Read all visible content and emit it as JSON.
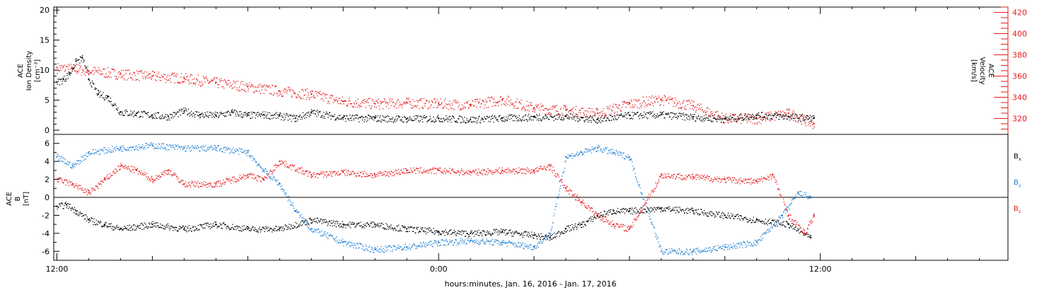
{
  "chart_data": [
    {
      "type": "scatter",
      "panel": "top",
      "xlabel": "hours:minutes, Jan. 16, 2016 - Jan. 17, 2016",
      "x_tick_labels": [
        "12:00",
        "0:00",
        "12:00"
      ],
      "x_unit": "hours since Jan. 16, 2016 00:00",
      "x_ticks": [
        12,
        24,
        36
      ],
      "xlim": [
        11.9,
        41.9
      ],
      "left_axis": {
        "label_lines": [
          "ACE",
          "Ion Density",
          "[cm⁻³]"
        ],
        "ylim": [
          -0.7,
          20.5
        ],
        "tick_labels": [
          "0",
          "5",
          "10",
          "15",
          "20"
        ],
        "color": "#000000"
      },
      "right_axis": {
        "label_lines": [
          "ACE",
          "Velocity",
          "[km/s]"
        ],
        "ylim": [
          305,
          425
        ],
        "tick_labels": [
          "320",
          "340",
          "360",
          "380",
          "400",
          "420"
        ],
        "color": "#e8191c"
      },
      "series": [
        {
          "name": "Ion Density",
          "axis": "left",
          "color": "#000000",
          "x": [
            12.0,
            12.2,
            12.4,
            12.6,
            12.8,
            13.0,
            13.3,
            13.6,
            14.0,
            14.5,
            15.0,
            15.5,
            16.0,
            16.5,
            17.0,
            17.5,
            18.0,
            18.5,
            19.0,
            19.5,
            20.0,
            21.0,
            22.0,
            23.0,
            24.0,
            25.0,
            26.0,
            27.0,
            28.0,
            29.0,
            30.0,
            31.0,
            32.0,
            33.0,
            34.0,
            35.0,
            35.8
          ],
          "y": [
            8.0,
            8.5,
            9.5,
            11.5,
            12.0,
            8.5,
            6.0,
            5.5,
            3.0,
            2.8,
            2.5,
            2.3,
            3.2,
            2.6,
            2.5,
            3.0,
            2.5,
            2.6,
            2.4,
            2.0,
            3.0,
            2.1,
            2.0,
            1.9,
            2.0,
            1.8,
            2.0,
            2.2,
            2.3,
            1.8,
            2.5,
            2.6,
            2.2,
            1.9,
            2.5,
            2.3,
            2.0
          ]
        },
        {
          "name": "Velocity",
          "axis": "right",
          "color": "#e8191c",
          "x": [
            12.0,
            12.5,
            13.0,
            14.0,
            15.0,
            16.0,
            17.0,
            18.0,
            19.0,
            20.0,
            21.0,
            22.0,
            23.0,
            24.0,
            25.0,
            26.0,
            27.0,
            28.0,
            29.0,
            30.0,
            31.0,
            32.0,
            33.0,
            34.0,
            35.0,
            35.8
          ],
          "y": [
            368,
            367,
            365,
            362,
            360,
            358,
            354,
            350,
            346,
            343,
            336,
            334,
            335,
            334,
            333,
            338,
            330,
            328,
            325,
            334,
            338,
            332,
            320,
            320,
            325,
            315
          ]
        }
      ]
    },
    {
      "type": "scatter",
      "panel": "bottom",
      "xlim": [
        11.9,
        41.9
      ],
      "left_axis": {
        "label_lines": [
          "ACE",
          "B",
          "[nT]"
        ],
        "ylim": [
          -7.0,
          7.0
        ],
        "tick_labels": [
          "-6",
          "-4",
          "-2",
          "0",
          "2",
          "4",
          "6"
        ],
        "color": "#000000"
      },
      "legend_position": "right",
      "series": [
        {
          "name": "Bx",
          "color": "#000000",
          "x": [
            12.0,
            12.3,
            12.6,
            13.0,
            13.5,
            14.0,
            15.0,
            16.0,
            17.0,
            18.0,
            19.0,
            20.0,
            21.0,
            22.0,
            23.0,
            24.0,
            25.0,
            26.0,
            27.0,
            27.5,
            28.0,
            28.5,
            29.0,
            29.5,
            30.0,
            31.0,
            32.0,
            33.0,
            34.0,
            35.0,
            35.7
          ],
          "y": [
            -1.0,
            -0.8,
            -1.5,
            -2.5,
            -3.0,
            -3.5,
            -3.0,
            -3.5,
            -3.0,
            -3.5,
            -3.5,
            -2.5,
            -3.0,
            -3.0,
            -3.5,
            -3.8,
            -4.0,
            -3.8,
            -4.2,
            -4.5,
            -3.5,
            -3.0,
            -2.0,
            -1.5,
            -1.5,
            -1.2,
            -1.5,
            -2.0,
            -2.5,
            -3.0,
            -4.5
          ]
        },
        {
          "name": "By",
          "color": "#1f7fd4",
          "x": [
            12.0,
            12.5,
            13.0,
            14.0,
            15.0,
            16.0,
            17.0,
            18.0,
            18.5,
            19.0,
            19.5,
            20.0,
            21.0,
            22.0,
            23.0,
            24.0,
            25.0,
            26.0,
            27.0,
            27.5,
            28.0,
            28.5,
            29.0,
            29.5,
            30.0,
            31.0,
            32.0,
            33.0,
            34.0,
            34.8,
            35.3,
            35.7
          ],
          "y": [
            4.5,
            3.5,
            5.0,
            5.5,
            5.8,
            5.5,
            5.5,
            5.0,
            3.0,
            1.5,
            -1.5,
            -3.5,
            -5.0,
            -5.8,
            -5.5,
            -5.0,
            -4.8,
            -5.0,
            -5.5,
            -4.0,
            4.5,
            5.0,
            5.5,
            5.0,
            4.5,
            -6.0,
            -6.0,
            -5.5,
            -5.0,
            -2.0,
            0.5,
            0.0
          ]
        },
        {
          "name": "Bz",
          "color": "#e8191c",
          "x": [
            12.0,
            12.5,
            13.0,
            13.5,
            14.0,
            14.5,
            15.0,
            15.5,
            16.0,
            17.0,
            18.0,
            18.5,
            19.0,
            20.0,
            21.0,
            22.0,
            23.0,
            24.0,
            25.0,
            26.0,
            27.0,
            27.5,
            28.0,
            28.5,
            29.0,
            29.5,
            30.0,
            31.0,
            32.0,
            33.0,
            34.0,
            34.5,
            35.0,
            35.5,
            35.8
          ],
          "y": [
            2.0,
            1.5,
            0.5,
            2.0,
            3.5,
            3.0,
            2.0,
            3.0,
            1.5,
            1.5,
            2.5,
            2.0,
            4.0,
            2.5,
            2.8,
            2.5,
            3.0,
            3.0,
            2.8,
            3.0,
            3.0,
            3.5,
            1.0,
            -0.5,
            -2.0,
            -3.0,
            -3.5,
            2.5,
            2.3,
            2.0,
            1.8,
            2.5,
            -2.0,
            -4.0,
            -2.0
          ]
        }
      ]
    }
  ],
  "legend": {
    "bx": "B",
    "bx_sub": "x",
    "by": "B",
    "by_sub": "y",
    "bz": "B",
    "bz_sub": "z"
  },
  "colors": {
    "axis": "#000000",
    "red": "#e8191c",
    "blue": "#1f7fd4"
  }
}
